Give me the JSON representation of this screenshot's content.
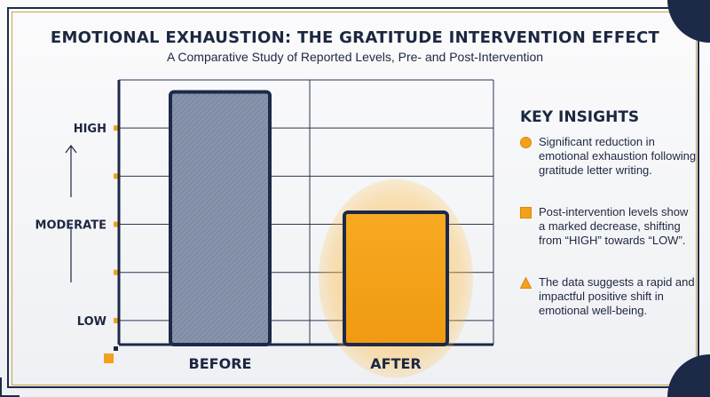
{
  "title": "EMOTIONAL EXHAUSTION: THE GRATITUDE INTERVENTION EFFECT",
  "subtitle": "A Comparative Study of Reported Levels, Pre- and Post-Intervention",
  "colors": {
    "navy": "#1c2a48",
    "gold": "#c9a24a",
    "before_bar": "#7d8aa3",
    "after_bar": "#f2a11b",
    "grid": "#2a3550"
  },
  "chart_data": {
    "type": "bar",
    "categories": [
      "BEFORE",
      "AFTER"
    ],
    "values": [
      9.5,
      4.5
    ],
    "y_tick_labels": [
      {
        "value": 8,
        "label": "HIGH"
      },
      {
        "value": 6,
        "label": ""
      },
      {
        "value": 4,
        "label": "MODERATE"
      },
      {
        "value": 2,
        "label": ""
      },
      {
        "value": 0,
        "label": "LOW"
      }
    ],
    "ylim": [
      -1,
      10
    ],
    "grid": true,
    "xlabel": "",
    "ylabel": ""
  },
  "insights": {
    "title": "KEY INSIGHTS",
    "items": [
      {
        "shape": "circle-icon",
        "text": "Significant reduction in emotional exhaustion following gratitude letter writing."
      },
      {
        "shape": "square-icon",
        "text": "Post-intervention levels show a marked decrease, shifting from “HIGH” towards “LOW”."
      },
      {
        "shape": "triangle-icon",
        "text": "The data suggests a rapid and impactful positive shift in emotional well-being."
      }
    ]
  }
}
